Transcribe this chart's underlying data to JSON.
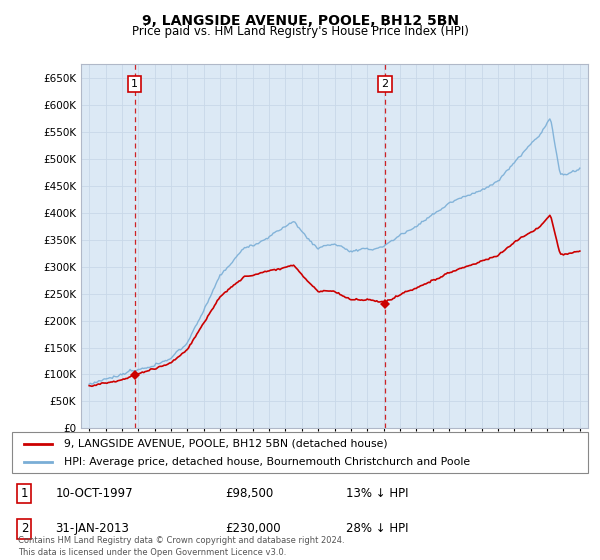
{
  "title": "9, LANGSIDE AVENUE, POOLE, BH12 5BN",
  "subtitle": "Price paid vs. HM Land Registry's House Price Index (HPI)",
  "legend_line1": "9, LANGSIDE AVENUE, POOLE, BH12 5BN (detached house)",
  "legend_line2": "HPI: Average price, detached house, Bournemouth Christchurch and Poole",
  "annotation1_date": "10-OCT-1997",
  "annotation1_price": "£98,500",
  "annotation1_hpi": "13% ↓ HPI",
  "annotation2_date": "31-JAN-2013",
  "annotation2_price": "£230,000",
  "annotation2_hpi": "28% ↓ HPI",
  "footer": "Contains HM Land Registry data © Crown copyright and database right 2024.\nThis data is licensed under the Open Government Licence v3.0.",
  "hpi_color": "#7aaed6",
  "price_color": "#cc0000",
  "vline_color": "#cc0000",
  "bg_color": "#dce9f5",
  "grid_color": "#c8d8e8",
  "ylim": [
    0,
    675000
  ],
  "yticks": [
    0,
    50000,
    100000,
    150000,
    200000,
    250000,
    300000,
    350000,
    400000,
    450000,
    500000,
    550000,
    600000,
    650000
  ],
  "sale1_year": 1997.78,
  "sale1_price": 98500,
  "sale2_year": 2013.08,
  "sale2_price": 230000,
  "xmin": 1995,
  "xmax": 2025
}
